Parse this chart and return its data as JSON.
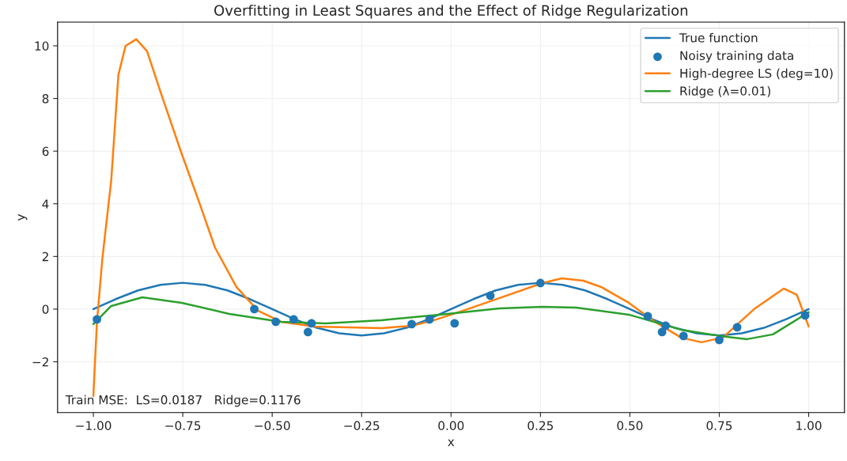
{
  "chart_data": {
    "type": "line",
    "title": "Overfitting in Least Squares and the Effect of Ridge Regularization",
    "xlabel": "x",
    "ylabel": "y",
    "xlim": [
      -1.1,
      1.1
    ],
    "ylim": [
      -3.93,
      10.9
    ],
    "xticks": [
      {
        "value": -1,
        "label": "−1.00"
      },
      {
        "value": -0.75,
        "label": "−0.75"
      },
      {
        "value": -0.5,
        "label": "−0.50"
      },
      {
        "value": -0.25,
        "label": "−0.25"
      },
      {
        "value": 0,
        "label": "0.00"
      },
      {
        "value": 0.25,
        "label": "0.25"
      },
      {
        "value": 0.5,
        "label": "0.50"
      },
      {
        "value": 0.75,
        "label": "0.75"
      },
      {
        "value": 1,
        "label": "1.00"
      }
    ],
    "yticks": [
      {
        "value": -2,
        "label": "−2"
      },
      0,
      2,
      4,
      6,
      8,
      10
    ],
    "grid": true,
    "legend": "top right",
    "line_style": "solid",
    "annotations": [
      "Train MSE:  LS=0.0187   Ridge=0.1176"
    ],
    "series": [
      {
        "name": "True function",
        "color": "#1f77b4",
        "x": [
          -1,
          -0.9375,
          -0.875,
          -0.8125,
          -0.75,
          -0.6875,
          -0.625,
          -0.5625,
          -0.5,
          -0.4375,
          -0.375,
          -0.3125,
          -0.25,
          -0.1875,
          -0.125,
          -0.0625,
          0,
          0.0625,
          0.125,
          0.1875,
          0.25,
          0.3125,
          0.375,
          0.4375,
          0.5,
          0.5625,
          0.625,
          0.6875,
          0.75,
          0.8125,
          0.875,
          0.9375,
          1
        ],
        "values": [
          0,
          0.38,
          0.71,
          0.92,
          1,
          0.92,
          0.71,
          0.38,
          0,
          -0.38,
          -0.71,
          -0.92,
          -1,
          -0.92,
          -0.71,
          -0.38,
          0,
          0.38,
          0.71,
          0.92,
          1,
          0.92,
          0.71,
          0.38,
          0,
          -0.38,
          -0.71,
          -0.92,
          -1,
          -0.92,
          -0.71,
          -0.38,
          0
        ]
      },
      {
        "name": "Noisy training data",
        "color": "#1f77b4",
        "type": "scatter",
        "marker": "circle",
        "x": [
          -0.99,
          -0.55,
          -0.49,
          -0.44,
          -0.4,
          -0.39,
          -0.11,
          -0.06,
          0.01,
          0.11,
          0.25,
          0.55,
          0.59,
          0.6,
          0.65,
          0.75,
          0.8,
          0.99
        ],
        "values": [
          -0.39,
          0,
          -0.48,
          -0.39,
          -0.87,
          -0.54,
          -0.57,
          -0.39,
          -0.54,
          0.51,
          0.99,
          -0.27,
          -0.87,
          -0.63,
          -1.02,
          -1.17,
          -0.69,
          -0.24
        ]
      },
      {
        "name": "High-degree LS (deg=10)",
        "color": "#ff7f0e",
        "x": [
          -1,
          -0.99,
          -0.975,
          -0.95,
          -0.93,
          -0.91,
          -0.88,
          -0.85,
          -0.806,
          -0.753,
          -0.7,
          -0.66,
          -0.6,
          -0.54,
          -0.475,
          -0.38,
          -0.195,
          -0.107,
          -0.047,
          0.034,
          0.136,
          0.255,
          0.31,
          0.37,
          0.42,
          0.497,
          0.57,
          0.643,
          0.7,
          0.76,
          0.85,
          0.93,
          0.967,
          1
        ],
        "values": [
          -3.3,
          -0.5,
          1.9,
          4.9,
          8.9,
          10.0,
          10.25,
          9.8,
          8.0,
          5.9,
          3.9,
          2.34,
          0.84,
          -0.06,
          -0.48,
          -0.66,
          -0.72,
          -0.63,
          -0.42,
          -0.06,
          0.42,
          0.99,
          1.17,
          1.08,
          0.84,
          0.24,
          -0.48,
          -1.08,
          -1.26,
          -1.08,
          0.03,
          0.78,
          0.54,
          -0.66
        ]
      },
      {
        "name": "Ridge (λ=0.01)",
        "color": "#2ca02c",
        "x": [
          -1,
          -0.95,
          -0.863,
          -0.753,
          -0.62,
          -0.475,
          -0.35,
          -0.195,
          -0.01,
          0.136,
          0.255,
          0.35,
          0.497,
          0.643,
          0.753,
          0.828,
          0.9,
          1
        ],
        "values": [
          -0.57,
          0.12,
          0.45,
          0.24,
          -0.18,
          -0.48,
          -0.54,
          -0.42,
          -0.18,
          0.03,
          0.09,
          0.06,
          -0.21,
          -0.78,
          -1.02,
          -1.14,
          -0.96,
          -0.12
        ]
      }
    ]
  }
}
